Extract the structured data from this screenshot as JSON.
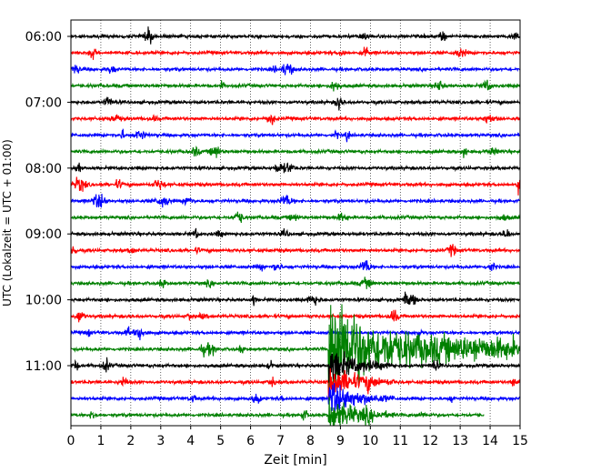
{
  "chart_data": {
    "type": "line",
    "title": "",
    "xlabel": "Zeit  [min]",
    "ylabel": "UTC (Lokalzeit = UTC + 01:00)",
    "xlim": [
      0,
      15
    ],
    "x_ticks": [
      0,
      1,
      2,
      3,
      4,
      5,
      6,
      7,
      8,
      9,
      10,
      11,
      12,
      13,
      14,
      15
    ],
    "y_ticks": [
      "06:00",
      "07:00",
      "08:00",
      "09:00",
      "10:00",
      "11:00"
    ],
    "grid": "vertical-dotted",
    "trace_interval_min": 15,
    "trace_colors": [
      "#000000",
      "#ff0000",
      "#0000ff",
      "#008000"
    ],
    "trace_count": 24,
    "last_trace_end_min": 13.8,
    "event": {
      "onset_min_in_trace_10_45": 8.6,
      "description_peak_min": 9.0
    }
  }
}
